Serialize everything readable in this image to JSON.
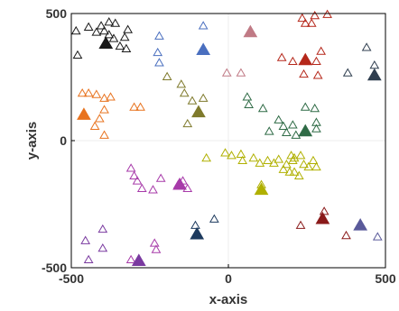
{
  "chart_data": {
    "type": "scatter",
    "xlabel": "x-axis",
    "ylabel": "y-axis",
    "xlim": [
      -500,
      500
    ],
    "ylim": [
      -500,
      500
    ],
    "xticks": [
      -500,
      0,
      500
    ],
    "yticks": [
      -500,
      0,
      500
    ],
    "xtick_labels": [
      "-500",
      "0",
      "500"
    ],
    "ytick_labels": [
      "-500",
      "0",
      "500"
    ],
    "grid": false,
    "zero_lines": true,
    "marker": "triangle",
    "series": [
      {
        "color": "#1a1a1a",
        "centroid": [
          -390,
          380
        ],
        "points": [
          [
            -485,
            430
          ],
          [
            -480,
            335
          ],
          [
            -445,
            445
          ],
          [
            -420,
            425
          ],
          [
            -405,
            450
          ],
          [
            -395,
            430
          ],
          [
            -380,
            415
          ],
          [
            -365,
            400
          ],
          [
            -380,
            465
          ],
          [
            -360,
            460
          ],
          [
            -320,
            435
          ],
          [
            -330,
            405
          ],
          [
            -325,
            360
          ],
          [
            -345,
            370
          ]
        ]
      },
      {
        "color": "#4a6fbf",
        "centroid": [
          -80,
          355
        ],
        "points": [
          [
            -220,
            410
          ],
          [
            -225,
            345
          ],
          [
            -220,
            305
          ],
          [
            -80,
            450
          ]
        ]
      },
      {
        "color": "#c07a85",
        "centroid": [
          70,
          425
        ],
        "points": [
          [
            -5,
            265
          ],
          [
            40,
            265
          ]
        ]
      },
      {
        "color": "#b5271a",
        "centroid": [
          245,
          315
        ],
        "points": [
          [
            170,
            325
          ],
          [
            205,
            310
          ],
          [
            235,
            480
          ],
          [
            245,
            460
          ],
          [
            265,
            460
          ],
          [
            275,
            490
          ],
          [
            315,
            495
          ],
          [
            295,
            350
          ],
          [
            280,
            310
          ],
          [
            285,
            255
          ],
          [
            240,
            260
          ]
        ]
      },
      {
        "color": "#2f3e4f",
        "centroid": [
          465,
          255
        ],
        "points": [
          [
            380,
            265
          ],
          [
            440,
            365
          ],
          [
            465,
            295
          ]
        ]
      },
      {
        "color": "#e8731f",
        "centroid": [
          -460,
          100
        ],
        "points": [
          [
            -465,
            185
          ],
          [
            -445,
            185
          ],
          [
            -420,
            180
          ],
          [
            -395,
            165
          ],
          [
            -375,
            170
          ],
          [
            -395,
            120
          ],
          [
            -410,
            85
          ],
          [
            -425,
            55
          ],
          [
            -395,
            20
          ],
          [
            -300,
            130
          ],
          [
            -280,
            130
          ]
        ]
      },
      {
        "color": "#7f7a2c",
        "centroid": [
          -95,
          110
        ],
        "points": [
          [
            -195,
            250
          ],
          [
            -150,
            220
          ],
          [
            -140,
            185
          ],
          [
            -115,
            155
          ],
          [
            -80,
            165
          ],
          [
            -130,
            65
          ]
        ]
      },
      {
        "color": "#2f6b46",
        "centroid": [
          245,
          35
        ],
        "points": [
          [
            60,
            170
          ],
          [
            65,
            140
          ],
          [
            110,
            125
          ],
          [
            160,
            80
          ],
          [
            175,
            55
          ],
          [
            205,
            60
          ],
          [
            215,
            20
          ],
          [
            185,
            30
          ],
          [
            130,
            35
          ],
          [
            245,
            130
          ],
          [
            275,
            125
          ],
          [
            280,
            70
          ],
          [
            280,
            45
          ]
        ]
      },
      {
        "color": "#b0b000",
        "centroid": [
          105,
          -195
        ],
        "points": [
          [
            -70,
            -70
          ],
          [
            -10,
            -50
          ],
          [
            10,
            -60
          ],
          [
            40,
            -55
          ],
          [
            45,
            -80
          ],
          [
            80,
            -70
          ],
          [
            100,
            -90
          ],
          [
            125,
            -80
          ],
          [
            145,
            -90
          ],
          [
            160,
            -75
          ],
          [
            185,
            -95
          ],
          [
            200,
            -60
          ],
          [
            205,
            -80
          ],
          [
            175,
            -115
          ],
          [
            195,
            -125
          ],
          [
            210,
            -125
          ],
          [
            225,
            -140
          ],
          [
            240,
            -95
          ],
          [
            255,
            -105
          ],
          [
            270,
            -80
          ],
          [
            280,
            -105
          ],
          [
            210,
            -70
          ],
          [
            230,
            -60
          ],
          [
            105,
            -175
          ]
        ]
      },
      {
        "color": "#a73aa9",
        "centroid": [
          -155,
          -175
        ],
        "points": [
          [
            -310,
            -110
          ],
          [
            -300,
            -140
          ],
          [
            -290,
            -160
          ],
          [
            -275,
            -190
          ],
          [
            -240,
            -195
          ],
          [
            -215,
            -150
          ],
          [
            -160,
            -175
          ],
          [
            -145,
            -160
          ],
          [
            -130,
            -190
          ],
          [
            -235,
            -405
          ],
          [
            -230,
            -430
          ],
          [
            -310,
            -470
          ],
          [
            -285,
            -480
          ]
        ]
      },
      {
        "color": "#1d3a5e",
        "centroid": [
          -100,
          -370
        ],
        "points": [
          [
            -105,
            -335
          ],
          [
            -45,
            -310
          ]
        ]
      },
      {
        "color": "#8a1a1a",
        "centroid": [
          300,
          -310
        ],
        "points": [
          [
            230,
            -335
          ],
          [
            305,
            -280
          ],
          [
            375,
            -375
          ]
        ]
      },
      {
        "color": "#5a5a9a",
        "centroid": [
          420,
          -335
        ],
        "points": [
          [
            475,
            -380
          ]
        ]
      },
      {
        "color": "#7a3aa0",
        "centroid": [
          -285,
          -475
        ],
        "points": [
          [
            -455,
            -395
          ],
          [
            -445,
            -470
          ],
          [
            -400,
            -350
          ],
          [
            -400,
            -425
          ]
        ]
      }
    ]
  }
}
